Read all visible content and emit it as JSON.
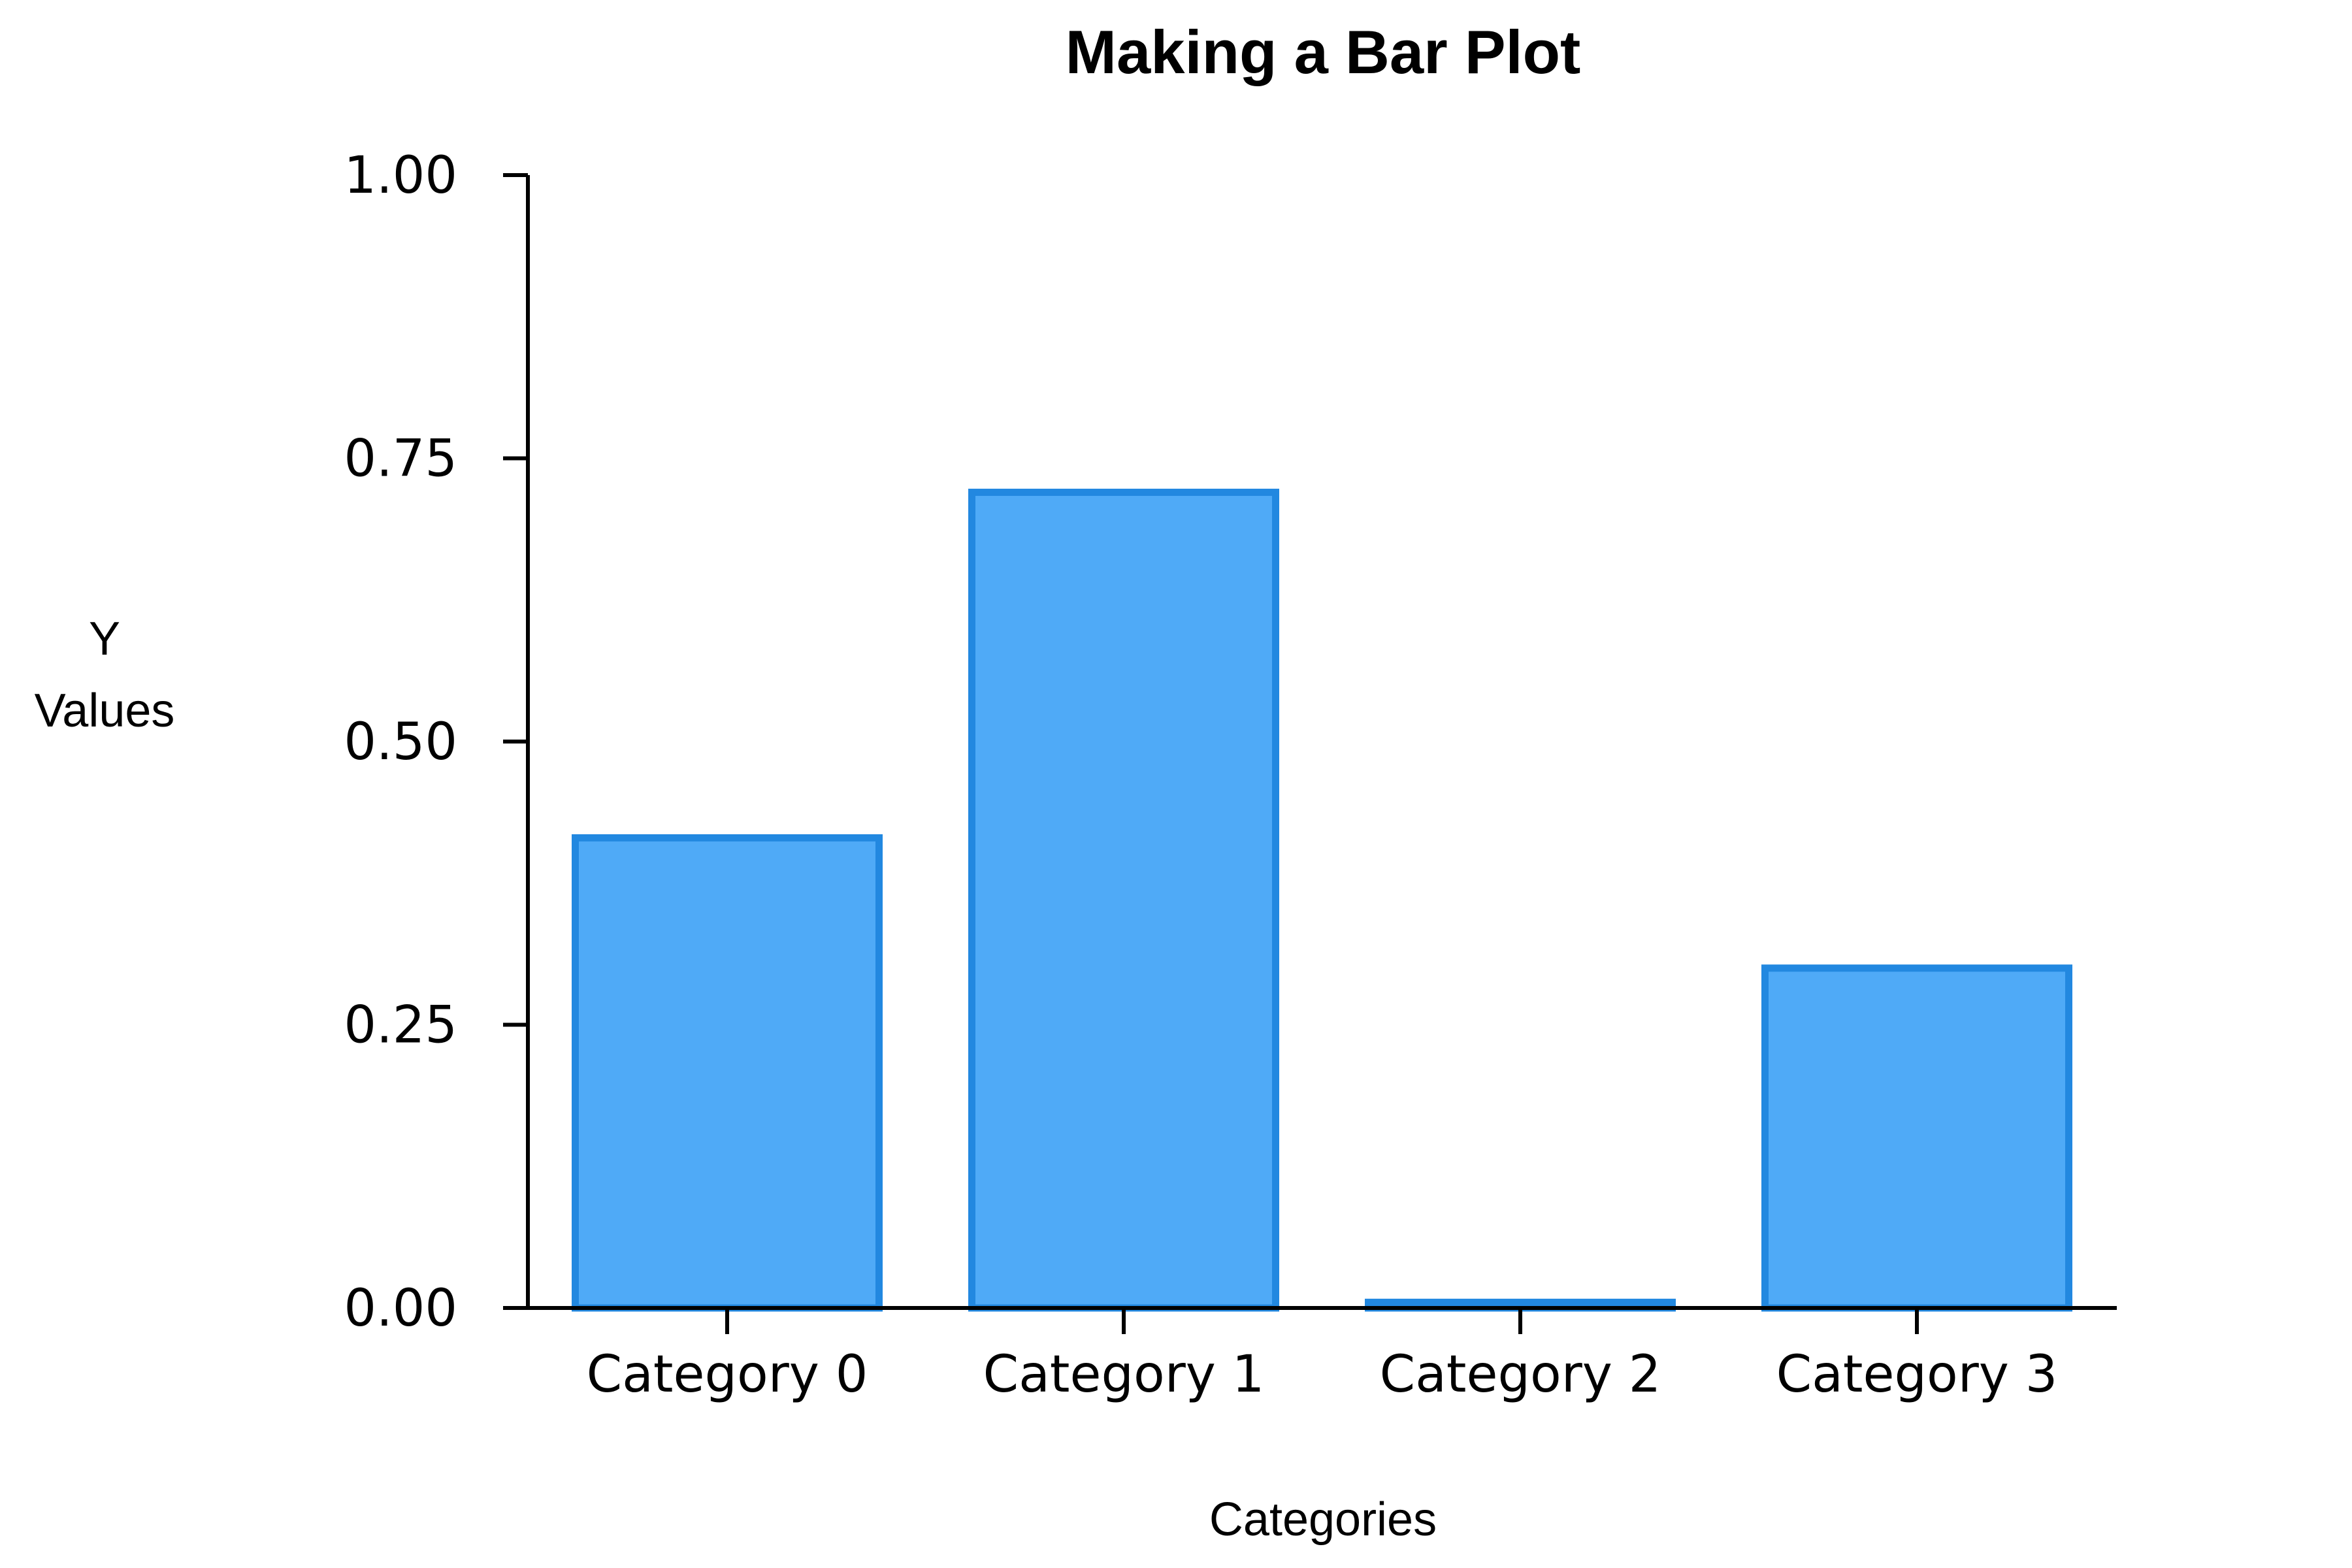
{
  "chart_data": {
    "type": "bar",
    "title": "Making a Bar Plot",
    "xlabel": "Categories",
    "ylabel_lines": [
      "Y",
      "Values"
    ],
    "categories": [
      "Category 0",
      "Category 1",
      "Category 2",
      "Category 3"
    ],
    "values": [
      0.415,
      0.72,
      0.005,
      0.3
    ],
    "ylim": [
      0,
      1
    ],
    "yticks": [
      "0.00",
      "0.25",
      "0.50",
      "0.75",
      "1.00"
    ],
    "grid": false,
    "colors": {
      "bar_fill": "#4faaf7",
      "bar_edge": "#2288e0",
      "axis": "#000000"
    }
  }
}
